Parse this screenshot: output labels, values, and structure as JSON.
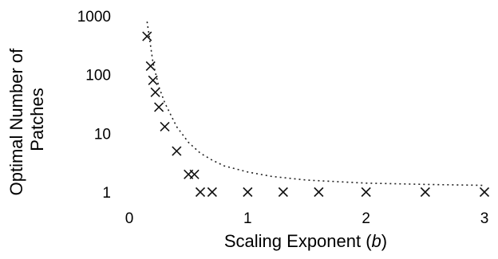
{
  "chart_data": {
    "type": "scatter",
    "title": "",
    "xlabel_parts": [
      "Scaling Exponent (",
      "b",
      ")"
    ],
    "ylabel_lines": [
      "Optimal Number of",
      "Patches"
    ],
    "xscale": "linear",
    "yscale": "log",
    "xlim": [
      0,
      3
    ],
    "ylim": [
      1,
      1000
    ],
    "x_ticks": [
      "0",
      "1",
      "2",
      "3"
    ],
    "y_ticks": [
      "1",
      "10",
      "100",
      "1000"
    ],
    "grid": false,
    "legend": "none",
    "series": [
      {
        "marker": "x",
        "points": [
          {
            "x": 0.15,
            "y": 450
          },
          {
            "x": 0.18,
            "y": 140
          },
          {
            "x": 0.2,
            "y": 80
          },
          {
            "x": 0.22,
            "y": 50
          },
          {
            "x": 0.25,
            "y": 28
          },
          {
            "x": 0.3,
            "y": 13
          },
          {
            "x": 0.4,
            "y": 5
          },
          {
            "x": 0.5,
            "y": 2
          },
          {
            "x": 0.55,
            "y": 2
          },
          {
            "x": 0.6,
            "y": 1
          },
          {
            "x": 0.7,
            "y": 1
          },
          {
            "x": 1.0,
            "y": 1
          },
          {
            "x": 1.3,
            "y": 1
          },
          {
            "x": 1.6,
            "y": 1
          },
          {
            "x": 2.0,
            "y": 1
          },
          {
            "x": 2.5,
            "y": 1
          },
          {
            "x": 3.0,
            "y": 1
          }
        ]
      },
      {
        "line": "dotted",
        "points": [
          {
            "x": 0.15,
            "y": 800
          },
          {
            "x": 0.2,
            "y": 160
          },
          {
            "x": 0.25,
            "y": 62
          },
          {
            "x": 0.3,
            "y": 33
          },
          {
            "x": 0.4,
            "y": 13
          },
          {
            "x": 0.5,
            "y": 7
          },
          {
            "x": 0.6,
            "y": 4.6
          },
          {
            "x": 0.7,
            "y": 3.5
          },
          {
            "x": 0.8,
            "y": 2.8
          },
          {
            "x": 1.0,
            "y": 2.2
          },
          {
            "x": 1.2,
            "y": 1.85
          },
          {
            "x": 1.5,
            "y": 1.6
          },
          {
            "x": 2.0,
            "y": 1.42
          },
          {
            "x": 2.5,
            "y": 1.35
          },
          {
            "x": 3.0,
            "y": 1.3
          }
        ]
      }
    ]
  }
}
